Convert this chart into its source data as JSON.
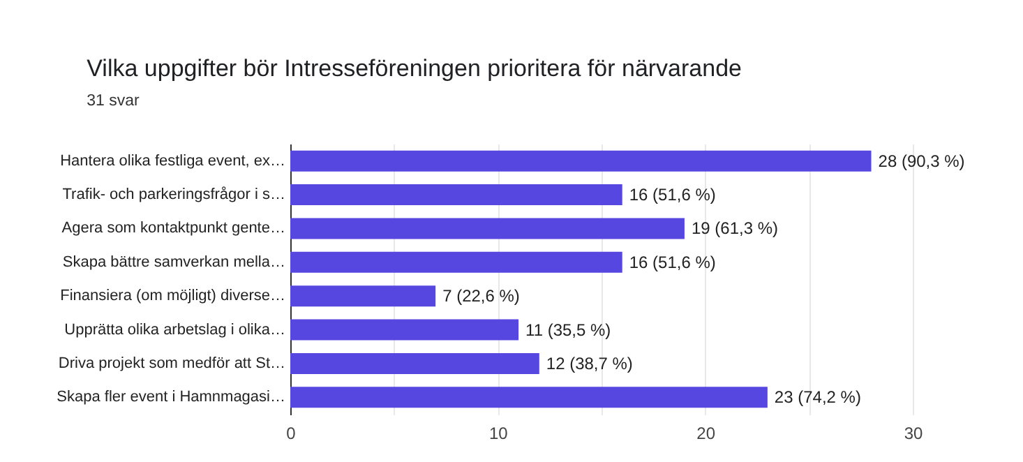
{
  "chart_data": {
    "type": "bar",
    "orientation": "horizontal",
    "title": "Vilka uppgifter bör Intresseföreningen prioritera för närvarande",
    "subtitle": "31 svar",
    "categories": [
      "Hantera olika festliga event, ex…",
      "Trafik- och parkeringsfrågor i s…",
      "Agera som kontaktpunkt gente…",
      "Skapa bättre samverkan mella…",
      "Finansiera (om möjligt) diverse…",
      "Upprätta olika arbetslag i olika…",
      "Driva projekt som medför att St…",
      "Skapa fler event i Hamnmagasi…"
    ],
    "values": [
      28,
      16,
      19,
      16,
      7,
      11,
      12,
      23
    ],
    "value_labels": [
      "28 (90,3 %)",
      "16 (51,6 %)",
      "19 (61,3 %)",
      "16 (51,6 %)",
      "7 (22,6 %)",
      "11 (35,5 %)",
      "12 (38,7 %)",
      "23 (74,2 %)"
    ],
    "color": "#5647e0",
    "xlim": [
      0,
      30
    ],
    "xticks": [
      0,
      {
        "value": 5,
        "label": null
      },
      10,
      {
        "value": 15,
        "label": null
      },
      20,
      {
        "value": 25,
        "label": null
      },
      30
    ],
    "grid": true
  }
}
